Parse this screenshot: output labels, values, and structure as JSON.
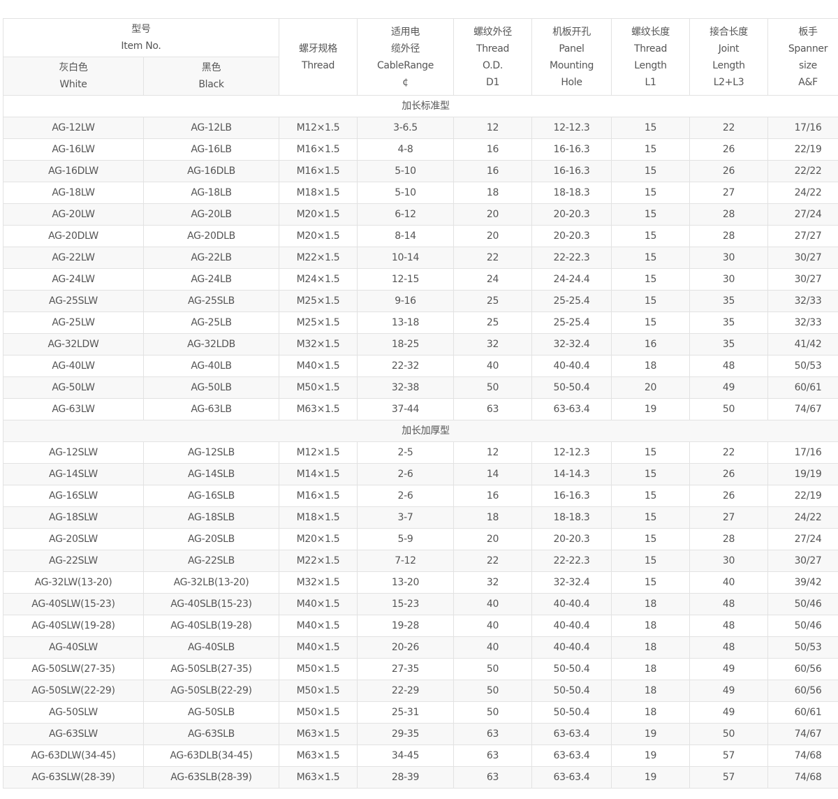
{
  "header": {
    "item_no": [
      "型号",
      "Item No."
    ],
    "white": [
      "灰白色",
      "White"
    ],
    "black": [
      "黑色",
      "Black"
    ],
    "thread": [
      "螺牙规格",
      "Thread"
    ],
    "cable_range": [
      "适用电",
      "缆外径",
      "CableRange",
      "¢"
    ],
    "thread_od": [
      "螺纹外径",
      "Thread",
      "O.D.",
      "D1"
    ],
    "panel_hole": [
      "机板开孔",
      "Panel",
      "Mounting",
      "Hole"
    ],
    "thread_length": [
      "螺纹长度",
      "Thread",
      "Length",
      "L1"
    ],
    "joint_length": [
      "接合长度",
      "Joint",
      "Length",
      "L2+L3"
    ],
    "spanner": [
      "板手",
      "Spanner",
      "size",
      "A&F"
    ]
  },
  "sections": [
    {
      "title": "加长标准型",
      "rows": [
        [
          "AG-12LW",
          "AG-12LB",
          "M12×1.5",
          "3-6.5",
          "12",
          "12-12.3",
          "15",
          "22",
          "17/16"
        ],
        [
          "AG-16LW",
          "AG-16LB",
          "M16×1.5",
          "4-8",
          "16",
          "16-16.3",
          "15",
          "26",
          "22/19"
        ],
        [
          "AG-16DLW",
          "AG-16DLB",
          "M16×1.5",
          "5-10",
          "16",
          "16-16.3",
          "15",
          "26",
          "22/22"
        ],
        [
          "AG-18LW",
          "AG-18LB",
          "M18×1.5",
          "5-10",
          "18",
          "18-18.3",
          "15",
          "27",
          "24/22"
        ],
        [
          "AG-20LW",
          "AG-20LB",
          "M20×1.5",
          "6-12",
          "20",
          "20-20.3",
          "15",
          "28",
          "27/24"
        ],
        [
          "AG-20DLW",
          "AG-20DLB",
          "M20×1.5",
          "8-14",
          "20",
          "20-20.3",
          "15",
          "28",
          "27/27"
        ],
        [
          "AG-22LW",
          "AG-22LB",
          "M22×1.5",
          "10-14",
          "22",
          "22-22.3",
          "15",
          "30",
          "30/27"
        ],
        [
          "AG-24LW",
          "AG-24LB",
          "M24×1.5",
          "12-15",
          "24",
          "24-24.4",
          "15",
          "30",
          "30/27"
        ],
        [
          "AG-25SLW",
          "AG-25SLB",
          "M25×1.5",
          "9-16",
          "25",
          "25-25.4",
          "15",
          "35",
          "32/33"
        ],
        [
          "AG-25LW",
          "AG-25LB",
          "M25×1.5",
          "13-18",
          "25",
          "25-25.4",
          "15",
          "35",
          "32/33"
        ],
        [
          "AG-32LDW",
          "AG-32LDB",
          "M32×1.5",
          "18-25",
          "32",
          "32-32.4",
          "16",
          "35",
          "41/42"
        ],
        [
          "AG-40LW",
          "AG-40LB",
          "M40×1.5",
          "22-32",
          "40",
          "40-40.4",
          "18",
          "48",
          "50/53"
        ],
        [
          "AG-50LW",
          "AG-50LB",
          "M50×1.5",
          "32-38",
          "50",
          "50-50.4",
          "20",
          "49",
          "60/61"
        ],
        [
          "AG-63LW",
          "AG-63LB",
          "M63×1.5",
          "37-44",
          "63",
          "63-63.4",
          "19",
          "50",
          "74/67"
        ]
      ]
    },
    {
      "title": "加长加厚型",
      "rows": [
        [
          "AG-12SLW",
          "AG-12SLB",
          "M12×1.5",
          "2-5",
          "12",
          "12-12.3",
          "15",
          "22",
          "17/16"
        ],
        [
          "AG-14SLW",
          "AG-14SLB",
          "M14×1.5",
          "2-6",
          "14",
          "14-14.3",
          "15",
          "26",
          "19/19"
        ],
        [
          "AG-16SLW",
          "AG-16SLB",
          "M16×1.5",
          "2-6",
          "16",
          "16-16.3",
          "15",
          "26",
          "22/19"
        ],
        [
          "AG-18SLW",
          "AG-18SLB",
          "M18×1.5",
          "3-7",
          "18",
          "18-18.3",
          "15",
          "27",
          "24/22"
        ],
        [
          "AG-20SLW",
          "AG-20SLB",
          "M20×1.5",
          "5-9",
          "20",
          "20-20.3",
          "15",
          "28",
          "27/24"
        ],
        [
          "AG-22SLW",
          "AG-22SLB",
          "M22×1.5",
          "7-12",
          "22",
          "22-22.3",
          "15",
          "30",
          "30/27"
        ],
        [
          "AG-32LW(13-20)",
          "AG-32LB(13-20)",
          "M32×1.5",
          "13-20",
          "32",
          "32-32.4",
          "15",
          "40",
          "39/42"
        ],
        [
          "AG-40SLW(15-23)",
          "AG-40SLB(15-23)",
          "M40×1.5",
          "15-23",
          "40",
          "40-40.4",
          "18",
          "48",
          "50/46"
        ],
        [
          "AG-40SLW(19-28)",
          "AG-40SLB(19-28)",
          "M40×1.5",
          "19-28",
          "40",
          "40-40.4",
          "18",
          "48",
          "50/46"
        ],
        [
          "AG-40SLW",
          "AG-40SLB",
          "M40×1.5",
          "20-26",
          "40",
          "40-40.4",
          "18",
          "48",
          "50/53"
        ],
        [
          "AG-50SLW(27-35)",
          "AG-50SLB(27-35)",
          "M50×1.5",
          "27-35",
          "50",
          "50-50.4",
          "18",
          "49",
          "60/56"
        ],
        [
          "AG-50SLW(22-29)",
          "AG-50SLB(22-29)",
          "M50×1.5",
          "22-29",
          "50",
          "50-50.4",
          "18",
          "49",
          "60/56"
        ],
        [
          "AG-50SLW",
          "AG-50SLB",
          "M50×1.5",
          "25-31",
          "50",
          "50-50.4",
          "18",
          "49",
          "60/61"
        ],
        [
          "AG-63SLW",
          "AG-63SLB",
          "M63×1.5",
          "29-35",
          "63",
          "63-63.4",
          "19",
          "50",
          "74/67"
        ],
        [
          "AG-63DLW(34-45)",
          "AG-63DLB(34-45)",
          "M63×1.5",
          "34-45",
          "63",
          "63-63.4",
          "19",
          "57",
          "74/68"
        ],
        [
          "AG-63SLW(28-39)",
          "AG-63SLB(28-39)",
          "M63×1.5",
          "28-39",
          "63",
          "63-63.4",
          "19",
          "57",
          "74/68"
        ]
      ]
    }
  ]
}
